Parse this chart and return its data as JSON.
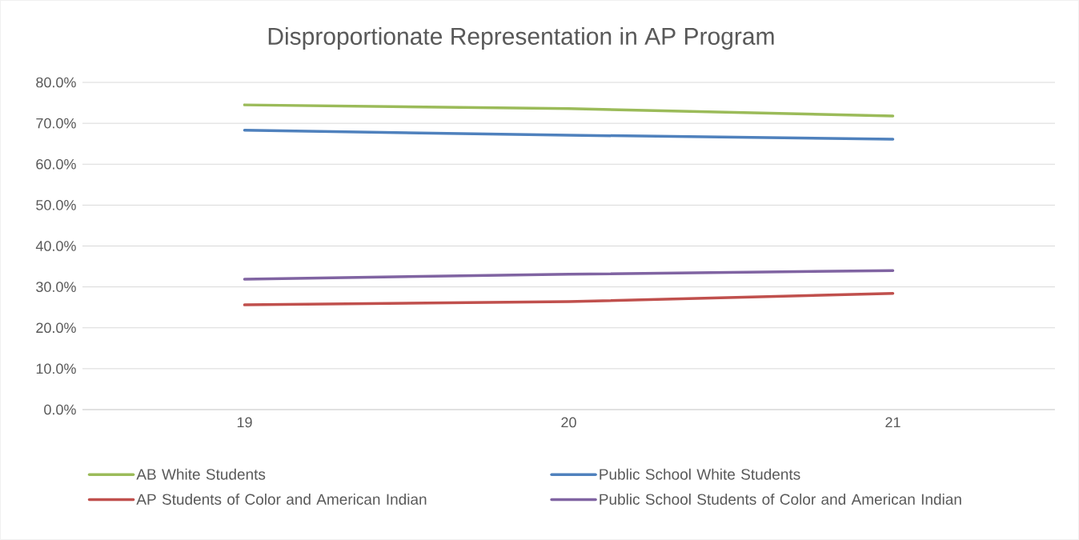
{
  "chart_data": {
    "type": "line",
    "title": "Disproportionate Representation in AP Program",
    "categories": [
      "19",
      "20",
      "21"
    ],
    "series": [
      {
        "name": "AB White Students",
        "color": "#9bbb59",
        "values": [
          74.5,
          73.6,
          71.8
        ]
      },
      {
        "name": "Public School White Students",
        "color": "#4f81bd",
        "values": [
          68.3,
          67.1,
          66.1
        ]
      },
      {
        "name": "AP Students of Color and American Indian",
        "color": "#c0504d",
        "values": [
          25.6,
          26.4,
          28.4
        ]
      },
      {
        "name": "Public School Students of Color and American Indian",
        "color": "#8064a2",
        "values": [
          31.9,
          33.1,
          34.0
        ]
      }
    ],
    "ylim": [
      0,
      80
    ],
    "yticks": [
      {
        "value": 0,
        "label": "0.0%"
      },
      {
        "value": 10,
        "label": "10.0%"
      },
      {
        "value": 20,
        "label": "20.0%"
      },
      {
        "value": 30,
        "label": "30.0%"
      },
      {
        "value": 40,
        "label": "40.0%"
      },
      {
        "value": 50,
        "label": "50.0%"
      },
      {
        "value": 60,
        "label": "60.0%"
      },
      {
        "value": 70,
        "label": "70.0%"
      },
      {
        "value": 80,
        "label": "80.0%"
      }
    ],
    "grid": "y",
    "legend": "bottom",
    "line_style": "solid"
  }
}
